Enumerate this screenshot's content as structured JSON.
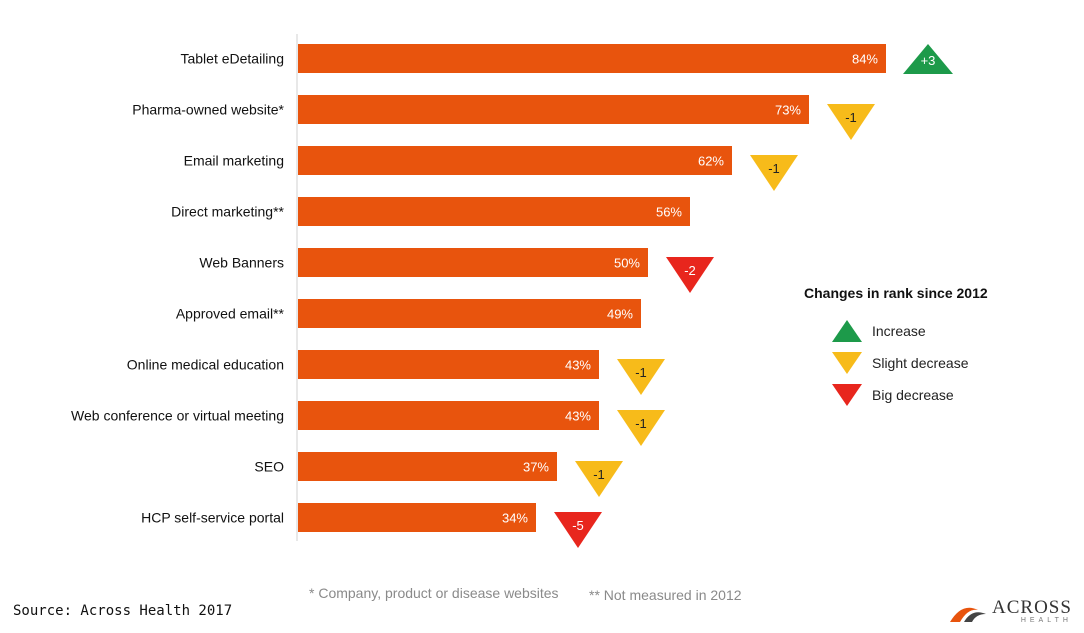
{
  "chart_data": {
    "type": "bar",
    "orientation": "horizontal",
    "categories": [
      "Tablet eDetailing",
      "Pharma-owned website*",
      "Email marketing",
      "Direct marketing**",
      "Web Banners",
      "Approved email**",
      "Online medical education",
      "Web conference or virtual meeting",
      "SEO",
      "HCP self-service portal"
    ],
    "values": [
      84,
      73,
      62,
      56,
      50,
      49,
      43,
      43,
      37,
      34
    ],
    "value_labels": [
      "84%",
      "73%",
      "62%",
      "56%",
      "50%",
      "49%",
      "43%",
      "43%",
      "37%",
      "34%"
    ],
    "rank_changes": [
      {
        "label": "+3",
        "kind": "increase"
      },
      {
        "label": "-1",
        "kind": "slight_decrease"
      },
      {
        "label": "-1",
        "kind": "slight_decrease"
      },
      null,
      {
        "label": "-2",
        "kind": "big_decrease"
      },
      null,
      {
        "label": "-1",
        "kind": "slight_decrease"
      },
      {
        "label": "-1",
        "kind": "slight_decrease"
      },
      {
        "label": "-1",
        "kind": "slight_decrease"
      },
      {
        "label": "-5",
        "kind": "big_decrease"
      }
    ],
    "xlim": [
      0,
      100
    ],
    "grid": false,
    "bar_color": "#e8540d"
  },
  "legend": {
    "title": "Changes in rank since 2012",
    "items": [
      {
        "label": "Increase",
        "kind": "increase"
      },
      {
        "label": "Slight decrease",
        "kind": "slight_decrease"
      },
      {
        "label": "Big decrease",
        "kind": "big_decrease"
      }
    ]
  },
  "colors": {
    "increase": "#1d9a4a",
    "slight_decrease": "#f7bb1a",
    "big_decrease": "#e8261d",
    "increase_text": "#ffffff",
    "slight_decrease_text": "#222222",
    "big_decrease_text": "#ffffff"
  },
  "footnotes": {
    "company": "* Company, product or disease websites",
    "not_measured": "** Not measured in 2012"
  },
  "source": "Source: Across Health 2017",
  "logo": {
    "name": "ACROSS",
    "sub": "HEALTH"
  }
}
